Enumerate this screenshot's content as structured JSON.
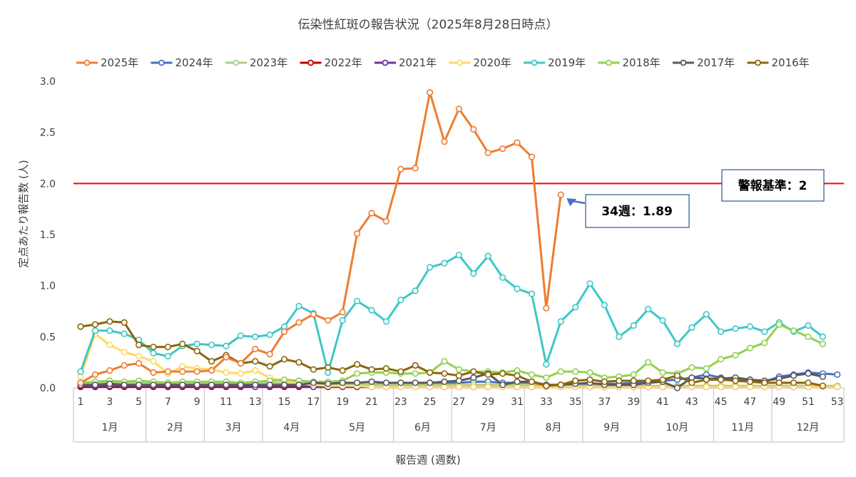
{
  "chart_data": {
    "type": "line",
    "title": "伝染性紅斑の報告状況（2025年8月28日時点）",
    "xlabel": "報告週 (週数)",
    "ylabel": "定点あたり報告数 (人)",
    "ylim": [
      0,
      3.0
    ],
    "yticks": [
      "0.0",
      "0.5",
      "1.0",
      "1.5",
      "2.0",
      "2.5",
      "3.0"
    ],
    "xlim": [
      1,
      53
    ],
    "xticks": [
      1,
      3,
      5,
      7,
      9,
      11,
      13,
      15,
      17,
      19,
      21,
      23,
      25,
      27,
      29,
      31,
      33,
      35,
      37,
      39,
      41,
      43,
      45,
      47,
      49,
      51,
      53
    ],
    "months": [
      {
        "label": "1月",
        "start": 0.5,
        "end": 5.5
      },
      {
        "label": "2月",
        "start": 5.5,
        "end": 9.5
      },
      {
        "label": "3月",
        "start": 9.5,
        "end": 13.5
      },
      {
        "label": "4月",
        "start": 13.5,
        "end": 17.5
      },
      {
        "label": "5月",
        "start": 17.5,
        "end": 22.5
      },
      {
        "label": "6月",
        "start": 22.5,
        "end": 26.5
      },
      {
        "label": "7月",
        "start": 26.5,
        "end": 31.5
      },
      {
        "label": "8月",
        "start": 31.5,
        "end": 35.5
      },
      {
        "label": "9月",
        "start": 35.5,
        "end": 39.5
      },
      {
        "label": "10月",
        "start": 39.5,
        "end": 44.5
      },
      {
        "label": "11月",
        "start": 44.5,
        "end": 48.5
      },
      {
        "label": "12月",
        "start": 48.5,
        "end": 53.5
      }
    ],
    "legend_position": "top",
    "grid": false,
    "threshold": {
      "value": 2.0,
      "color": "#ff0000",
      "label": "警報基準：2"
    },
    "annotation": {
      "label": "34週：1.89",
      "week": 34,
      "value": 1.89
    },
    "series": [
      {
        "name": "2024年",
        "color": "#4472c4",
        "start": 1,
        "values": [
          0.02,
          0.01,
          0.02,
          0.02,
          0.02,
          0.02,
          0.01,
          0.02,
          0.02,
          0.02,
          0.02,
          0.03,
          0.02,
          0.03,
          0.02,
          0.03,
          0.03,
          0.03,
          0.03,
          0.04,
          0.03,
          0.04,
          0.04,
          0.04,
          0.05,
          0.04,
          0.05,
          0.06,
          0.06,
          0.05,
          0.05,
          0.05,
          0.02,
          0.03,
          0.03,
          0.04,
          0.04,
          0.04,
          0.05,
          0.06,
          0.07,
          0.08,
          0.1,
          0.13,
          0.1,
          0.08,
          0.06,
          0.06,
          0.11,
          0.13,
          0.15,
          0.14,
          0.13
        ]
      },
      {
        "name": "2023年",
        "color": "#a9d18e",
        "start": 1,
        "values": [
          0.05,
          0.05,
          0.05,
          0.05,
          0.05,
          0.05,
          0.04,
          0.04,
          0.04,
          0.04,
          0.04,
          0.04,
          0.04,
          0.05,
          0.05,
          0.05,
          0.04,
          0.04,
          0.04,
          0.04,
          0.03,
          0.03,
          0.03,
          0.03,
          0.03,
          0.03,
          0.03,
          0.03,
          0.03,
          0.03,
          0.03,
          0.03,
          0.03,
          0.03,
          0.02,
          0.02,
          0.02,
          0.02,
          0.02,
          0.02,
          0.02,
          0.02,
          0.02,
          0.02,
          0.02,
          0.02,
          0.02,
          0.02,
          0.02,
          0.02,
          0.02,
          0.02,
          0.02
        ]
      },
      {
        "name": "2022年",
        "color": "#c00000",
        "start": 1,
        "values": [
          0.01,
          0.01,
          0.01,
          0.01,
          0.01,
          0.01,
          0.01,
          0.01,
          0.01,
          0.01,
          0.01,
          0.01,
          0.01,
          0.01,
          0.01,
          0.01,
          0.01,
          0.01,
          0.01,
          0.01,
          0.01,
          0.01,
          0.01,
          0.01,
          0.01,
          0.01,
          0.01,
          0.01,
          0.01,
          0.01,
          0.01,
          0.01,
          0.01,
          0.01,
          0.01,
          0.01,
          0.01,
          0.01,
          0.01,
          0.01,
          0.01,
          0.01,
          0.01,
          0.01,
          0.01,
          0.01,
          0.01,
          0.01,
          0.01,
          0.01,
          0.01,
          0.01,
          0.01
        ]
      },
      {
        "name": "2021年",
        "color": "#7030a0",
        "start": 1,
        "values": [
          0.02,
          0.02,
          0.02,
          0.02,
          0.02,
          0.02,
          0.02,
          0.02,
          0.02,
          0.02,
          0.02,
          0.02,
          0.01,
          0.02,
          0.02,
          0.02,
          0.01,
          0.01,
          0.01,
          0.01,
          0.01,
          0.01,
          0.01,
          0.01,
          0.01,
          0.01,
          0.01,
          0.01,
          0.01,
          0.01,
          0.01,
          0.01,
          0.01,
          0.01,
          0.01,
          0.01,
          0.01,
          0.01,
          0.01,
          0.01,
          0.01,
          0.01,
          0.01,
          0.01,
          0.01,
          0.01,
          0.01,
          0.01,
          0.01,
          0.01,
          0.01,
          0.01,
          0.01
        ]
      },
      {
        "name": "2020年",
        "color": "#ffd966",
        "start": 1,
        "values": [
          0.11,
          0.53,
          0.42,
          0.35,
          0.31,
          0.26,
          0.14,
          0.21,
          0.19,
          0.18,
          0.15,
          0.14,
          0.17,
          0.1,
          0.06,
          0.04,
          0.03,
          0.02,
          0.02,
          0.02,
          0.01,
          0.01,
          0.01,
          0.01,
          0.01,
          0.01,
          0.01,
          0.01,
          0.01,
          0.01,
          0.01,
          0.01,
          0.01,
          0.01,
          0.01,
          0.01,
          0.01,
          0.01,
          0.01,
          0.01,
          0.01,
          0.01,
          0.01,
          0.01,
          0.01,
          0.01,
          0.01,
          0.01,
          0.01,
          0.01,
          0.01,
          0.01,
          0.01
        ]
      },
      {
        "name": "2019年",
        "color": "#3ec7c7",
        "start": 1,
        "values": [
          0.16,
          0.56,
          0.56,
          0.53,
          0.47,
          0.34,
          0.31,
          0.41,
          0.43,
          0.42,
          0.41,
          0.51,
          0.5,
          0.52,
          0.6,
          0.8,
          0.73,
          0.15,
          0.66,
          0.85,
          0.76,
          0.65,
          0.86,
          0.95,
          1.18,
          1.22,
          1.3,
          1.12,
          1.29,
          1.08,
          0.97,
          0.92,
          0.23,
          0.65,
          0.79,
          1.02,
          0.81,
          0.5,
          0.61,
          0.77,
          0.66,
          0.43,
          0.59,
          0.72,
          0.55,
          0.58,
          0.6,
          0.55,
          0.64,
          0.55,
          0.61,
          0.5
        ]
      },
      {
        "name": "2018年",
        "color": "#92d050",
        "start": 1,
        "values": [
          0.05,
          0.06,
          0.07,
          0.06,
          0.07,
          0.06,
          0.05,
          0.06,
          0.06,
          0.06,
          0.06,
          0.05,
          0.06,
          0.07,
          0.08,
          0.07,
          0.06,
          0.06,
          0.07,
          0.14,
          0.15,
          0.15,
          0.14,
          0.14,
          0.15,
          0.26,
          0.18,
          0.16,
          0.16,
          0.15,
          0.17,
          0.13,
          0.1,
          0.16,
          0.16,
          0.15,
          0.1,
          0.11,
          0.13,
          0.25,
          0.15,
          0.14,
          0.2,
          0.19,
          0.28,
          0.32,
          0.39,
          0.44,
          0.62,
          0.56,
          0.5,
          0.43
        ]
      },
      {
        "name": "2017年",
        "color": "#595959",
        "start": 1,
        "values": [
          0.03,
          0.03,
          0.04,
          0.03,
          0.03,
          0.03,
          0.03,
          0.03,
          0.03,
          0.03,
          0.03,
          0.03,
          0.03,
          0.03,
          0.03,
          0.03,
          0.05,
          0.04,
          0.05,
          0.05,
          0.06,
          0.05,
          0.05,
          0.05,
          0.05,
          0.06,
          0.07,
          0.1,
          0.14,
          0.03,
          0.06,
          0.06,
          0.03,
          0.03,
          0.04,
          0.05,
          0.03,
          0.03,
          0.03,
          0.05,
          0.06,
          0.0,
          0.1,
          0.09,
          0.09,
          0.1,
          0.08,
          0.07,
          0.09,
          0.12,
          0.14,
          0.11
        ]
      },
      {
        "name": "2016年",
        "color": "#8b6508",
        "start": 1,
        "values": [
          0.6,
          0.62,
          0.65,
          0.64,
          0.42,
          0.4,
          0.4,
          0.43,
          0.36,
          0.26,
          0.32,
          0.24,
          0.26,
          0.21,
          0.28,
          0.25,
          0.18,
          0.2,
          0.17,
          0.23,
          0.18,
          0.19,
          0.16,
          0.22,
          0.15,
          0.14,
          0.12,
          0.16,
          0.13,
          0.14,
          0.12,
          0.06,
          0.02,
          0.03,
          0.07,
          0.08,
          0.06,
          0.07,
          0.07,
          0.07,
          0.08,
          0.12,
          0.05,
          0.08,
          0.08,
          0.07,
          0.06,
          0.05,
          0.05,
          0.05,
          0.05,
          0.02
        ]
      },
      {
        "name": "2025年",
        "color": "#ed7d31",
        "start": 1,
        "values": [
          0.05,
          0.13,
          0.17,
          0.22,
          0.24,
          0.15,
          0.16,
          0.16,
          0.16,
          0.17,
          0.3,
          0.24,
          0.38,
          0.33,
          0.55,
          0.64,
          0.72,
          0.66,
          0.74,
          1.51,
          1.71,
          1.63,
          2.14,
          2.15,
          2.89,
          2.41,
          2.73,
          2.53,
          2.3,
          2.34,
          2.4,
          2.26,
          0.78,
          1.89
        ]
      }
    ],
    "legend_order": [
      "2025年",
      "2024年",
      "2023年",
      "2022年",
      "2021年",
      "2020年",
      "2019年",
      "2018年",
      "2017年",
      "2016年"
    ]
  }
}
